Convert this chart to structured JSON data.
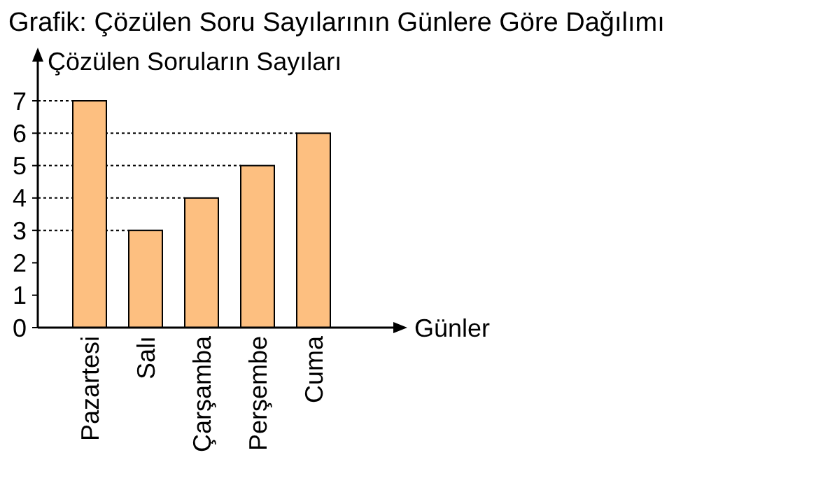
{
  "chart_data": {
    "type": "bar",
    "title": "Grafik: Çözülen Soru Sayılarının Günlere Göre Dağılımı",
    "ylabel": "Çözülen Soruların Sayıları",
    "xlabel": "Günler",
    "categories": [
      "Pazartesi",
      "Salı",
      "Çarşamba",
      "Perşembe",
      "Cuma"
    ],
    "values": [
      7,
      3,
      4,
      5,
      6
    ],
    "color": "#fdbf80",
    "ylim": [
      0,
      7
    ],
    "yticks": [
      0,
      1,
      2,
      3,
      4,
      5,
      6,
      7
    ],
    "ref_lines": [
      {
        "axis": "y",
        "value": 7,
        "line_style": "dotted"
      },
      {
        "axis": "y",
        "value": 6,
        "line_style": "dotted"
      },
      {
        "axis": "y",
        "value": 5,
        "line_style": "dotted"
      },
      {
        "axis": "y",
        "value": 4,
        "line_style": "dotted"
      },
      {
        "axis": "y",
        "value": 3,
        "line_style": "dotted"
      }
    ]
  }
}
